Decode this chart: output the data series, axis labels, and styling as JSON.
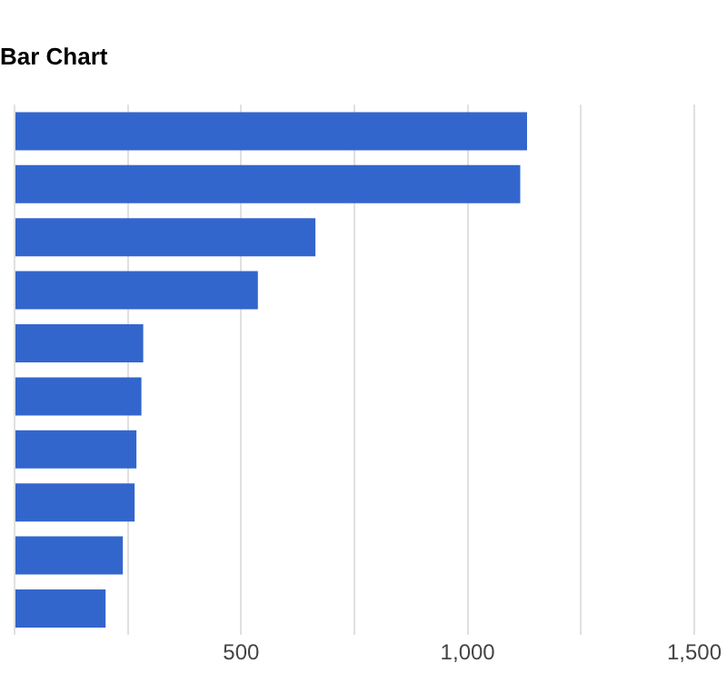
{
  "chart_data": {
    "type": "bar",
    "title": "Bar Chart",
    "orientation": "horizontal",
    "categories": [
      null,
      null,
      null,
      null,
      null,
      null,
      null,
      null,
      null,
      null
    ],
    "values": [
      1131,
      1116,
      664,
      537,
      284,
      280,
      269,
      265,
      239,
      201
    ],
    "color": "#3366cc",
    "xlim": [
      0,
      1500
    ],
    "xticks": [
      {
        "value": 0,
        "label": null
      },
      {
        "value": 250,
        "label": null
      },
      500,
      {
        "value": 750,
        "label": null
      },
      {
        "value": 1000,
        "label": "1,000"
      },
      {
        "value": 1250,
        "label": null
      },
      {
        "value": 1500,
        "label": "1,500"
      }
    ],
    "grid": "x"
  }
}
